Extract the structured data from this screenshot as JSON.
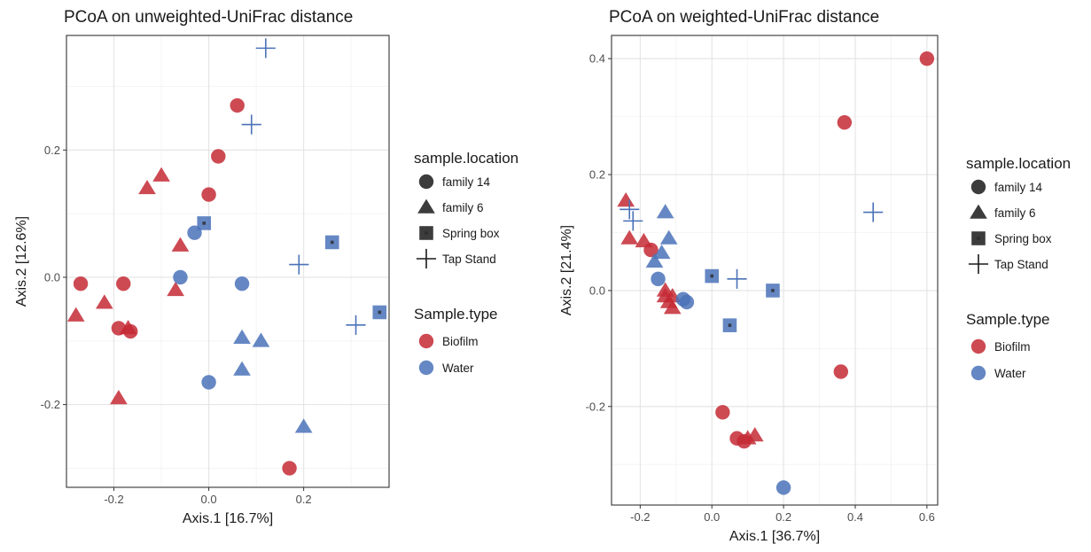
{
  "colors": {
    "Biofilm": "#c42a35",
    "Water": "#4a72b8"
  },
  "chart_data": [
    {
      "type": "scatter",
      "title": "PCoA on unweighted-UniFrac distance",
      "xlabel": "Axis.1   [16.7%]",
      "ylabel": "Axis.2   [12.6%]",
      "xlim": [
        -0.3,
        0.38
      ],
      "ylim": [
        -0.33,
        0.38
      ],
      "x_ticks": [
        -0.2,
        0.0,
        0.2
      ],
      "x_tick_labels": [
        "-0.2",
        "0.0",
        "0.2"
      ],
      "y_ticks": [
        -0.2,
        0.0,
        0.2
      ],
      "y_tick_labels": [
        "-0.2",
        "0.0",
        "0.2"
      ],
      "grid": true,
      "legend_position": "right",
      "legends": [
        {
          "title": "sample.location",
          "entries": [
            "family 14",
            "family 6",
            "Spring box",
            "Tap Stand"
          ]
        },
        {
          "title": "Sample.type",
          "entries": [
            "Biofilm",
            "Water"
          ]
        }
      ],
      "points": [
        {
          "x": 0.06,
          "y": 0.27,
          "location": "family 14",
          "type": "Biofilm"
        },
        {
          "x": 0.02,
          "y": 0.19,
          "location": "family 14",
          "type": "Biofilm"
        },
        {
          "x": 0.0,
          "y": 0.13,
          "location": "family 14",
          "type": "Biofilm"
        },
        {
          "x": -0.27,
          "y": -0.01,
          "location": "family 14",
          "type": "Biofilm"
        },
        {
          "x": -0.18,
          "y": -0.01,
          "location": "family 14",
          "type": "Biofilm"
        },
        {
          "x": -0.19,
          "y": -0.08,
          "location": "family 14",
          "type": "Biofilm"
        },
        {
          "x": -0.165,
          "y": -0.085,
          "location": "family 14",
          "type": "Biofilm"
        },
        {
          "x": 0.17,
          "y": -0.3,
          "location": "family 14",
          "type": "Biofilm"
        },
        {
          "x": -0.1,
          "y": 0.16,
          "location": "family 6",
          "type": "Biofilm"
        },
        {
          "x": -0.13,
          "y": 0.14,
          "location": "family 6",
          "type": "Biofilm"
        },
        {
          "x": -0.06,
          "y": 0.05,
          "location": "family 6",
          "type": "Biofilm"
        },
        {
          "x": -0.07,
          "y": -0.02,
          "location": "family 6",
          "type": "Biofilm"
        },
        {
          "x": -0.28,
          "y": -0.06,
          "location": "family 6",
          "type": "Biofilm"
        },
        {
          "x": -0.22,
          "y": -0.04,
          "location": "family 6",
          "type": "Biofilm"
        },
        {
          "x": -0.17,
          "y": -0.08,
          "location": "family 6",
          "type": "Biofilm"
        },
        {
          "x": -0.19,
          "y": -0.19,
          "location": "family 6",
          "type": "Biofilm"
        },
        {
          "x": -0.03,
          "y": 0.07,
          "location": "family 14",
          "type": "Water"
        },
        {
          "x": -0.06,
          "y": 0.0,
          "location": "family 14",
          "type": "Water"
        },
        {
          "x": 0.07,
          "y": -0.01,
          "location": "family 14",
          "type": "Water"
        },
        {
          "x": 0.0,
          "y": -0.165,
          "location": "family 14",
          "type": "Water"
        },
        {
          "x": 0.07,
          "y": -0.095,
          "location": "family 6",
          "type": "Water"
        },
        {
          "x": 0.11,
          "y": -0.1,
          "location": "family 6",
          "type": "Water"
        },
        {
          "x": 0.07,
          "y": -0.145,
          "location": "family 6",
          "type": "Water"
        },
        {
          "x": 0.2,
          "y": -0.235,
          "location": "family 6",
          "type": "Water"
        },
        {
          "x": -0.01,
          "y": 0.085,
          "location": "Spring box",
          "type": "Water"
        },
        {
          "x": 0.26,
          "y": 0.055,
          "location": "Spring box",
          "type": "Water"
        },
        {
          "x": 0.36,
          "y": -0.055,
          "location": "Spring box",
          "type": "Water"
        },
        {
          "x": 0.12,
          "y": 0.36,
          "location": "Tap Stand",
          "type": "Water"
        },
        {
          "x": 0.09,
          "y": 0.24,
          "location": "Tap Stand",
          "type": "Water"
        },
        {
          "x": 0.19,
          "y": 0.02,
          "location": "Tap Stand",
          "type": "Water"
        },
        {
          "x": 0.31,
          "y": -0.075,
          "location": "Tap Stand",
          "type": "Water"
        }
      ]
    },
    {
      "type": "scatter",
      "title": "PCoA on weighted-UniFrac distance",
      "xlabel": "Axis.1   [36.7%]",
      "ylabel": "Axis.2   [21.4%]",
      "xlim": [
        -0.28,
        0.63
      ],
      "ylim": [
        -0.37,
        0.44
      ],
      "x_ticks": [
        -0.2,
        0.0,
        0.2,
        0.4,
        0.6
      ],
      "x_tick_labels": [
        "-0.2",
        "0.0",
        "0.2",
        "0.4",
        "0.6"
      ],
      "y_ticks": [
        -0.2,
        0.0,
        0.2,
        0.4
      ],
      "y_tick_labels": [
        "-0.2",
        "0.0",
        "0.2",
        "0.4"
      ],
      "grid": true,
      "legend_position": "right",
      "legends": [
        {
          "title": "sample.location",
          "entries": [
            "family 14",
            "family 6",
            "Spring box",
            "Tap Stand"
          ]
        },
        {
          "title": "Sample.type",
          "entries": [
            "Biofilm",
            "Water"
          ]
        }
      ],
      "points": [
        {
          "x": 0.6,
          "y": 0.4,
          "location": "family 14",
          "type": "Biofilm"
        },
        {
          "x": 0.37,
          "y": 0.29,
          "location": "family 14",
          "type": "Biofilm"
        },
        {
          "x": 0.36,
          "y": -0.14,
          "location": "family 14",
          "type": "Biofilm"
        },
        {
          "x": -0.17,
          "y": 0.07,
          "location": "family 14",
          "type": "Biofilm"
        },
        {
          "x": 0.03,
          "y": -0.21,
          "location": "family 14",
          "type": "Biofilm"
        },
        {
          "x": 0.07,
          "y": -0.255,
          "location": "family 14",
          "type": "Biofilm"
        },
        {
          "x": 0.09,
          "y": -0.26,
          "location": "family 14",
          "type": "Biofilm"
        },
        {
          "x": -0.24,
          "y": 0.155,
          "location": "family 6",
          "type": "Biofilm"
        },
        {
          "x": -0.23,
          "y": 0.09,
          "location": "family 6",
          "type": "Biofilm"
        },
        {
          "x": -0.19,
          "y": 0.085,
          "location": "family 6",
          "type": "Biofilm"
        },
        {
          "x": -0.13,
          "y": 0.0,
          "location": "family 6",
          "type": "Biofilm"
        },
        {
          "x": -0.11,
          "y": -0.01,
          "location": "family 6",
          "type": "Biofilm"
        },
        {
          "x": -0.12,
          "y": -0.02,
          "location": "family 6",
          "type": "Biofilm"
        },
        {
          "x": -0.13,
          "y": -0.01,
          "location": "family 6",
          "type": "Biofilm"
        },
        {
          "x": -0.11,
          "y": -0.03,
          "location": "family 6",
          "type": "Biofilm"
        },
        {
          "x": 0.1,
          "y": -0.255,
          "location": "family 6",
          "type": "Biofilm"
        },
        {
          "x": 0.12,
          "y": -0.25,
          "location": "family 6",
          "type": "Biofilm"
        },
        {
          "x": -0.15,
          "y": 0.02,
          "location": "family 14",
          "type": "Water"
        },
        {
          "x": -0.08,
          "y": -0.015,
          "location": "family 14",
          "type": "Water"
        },
        {
          "x": -0.07,
          "y": -0.02,
          "location": "family 14",
          "type": "Water"
        },
        {
          "x": 0.2,
          "y": -0.34,
          "location": "family 14",
          "type": "Water"
        },
        {
          "x": -0.13,
          "y": 0.135,
          "location": "family 6",
          "type": "Water"
        },
        {
          "x": -0.12,
          "y": 0.09,
          "location": "family 6",
          "type": "Water"
        },
        {
          "x": -0.14,
          "y": 0.065,
          "location": "family 6",
          "type": "Water"
        },
        {
          "x": -0.16,
          "y": 0.05,
          "location": "family 6",
          "type": "Water"
        },
        {
          "x": 0.0,
          "y": 0.025,
          "location": "Spring box",
          "type": "Water"
        },
        {
          "x": 0.17,
          "y": 0.0,
          "location": "Spring box",
          "type": "Water"
        },
        {
          "x": 0.05,
          "y": -0.06,
          "location": "Spring box",
          "type": "Water"
        },
        {
          "x": -0.23,
          "y": 0.14,
          "location": "Tap Stand",
          "type": "Water"
        },
        {
          "x": -0.22,
          "y": 0.12,
          "location": "Tap Stand",
          "type": "Water"
        },
        {
          "x": 0.07,
          "y": 0.02,
          "location": "Tap Stand",
          "type": "Water"
        },
        {
          "x": 0.45,
          "y": 0.135,
          "location": "Tap Stand",
          "type": "Water"
        }
      ]
    }
  ]
}
